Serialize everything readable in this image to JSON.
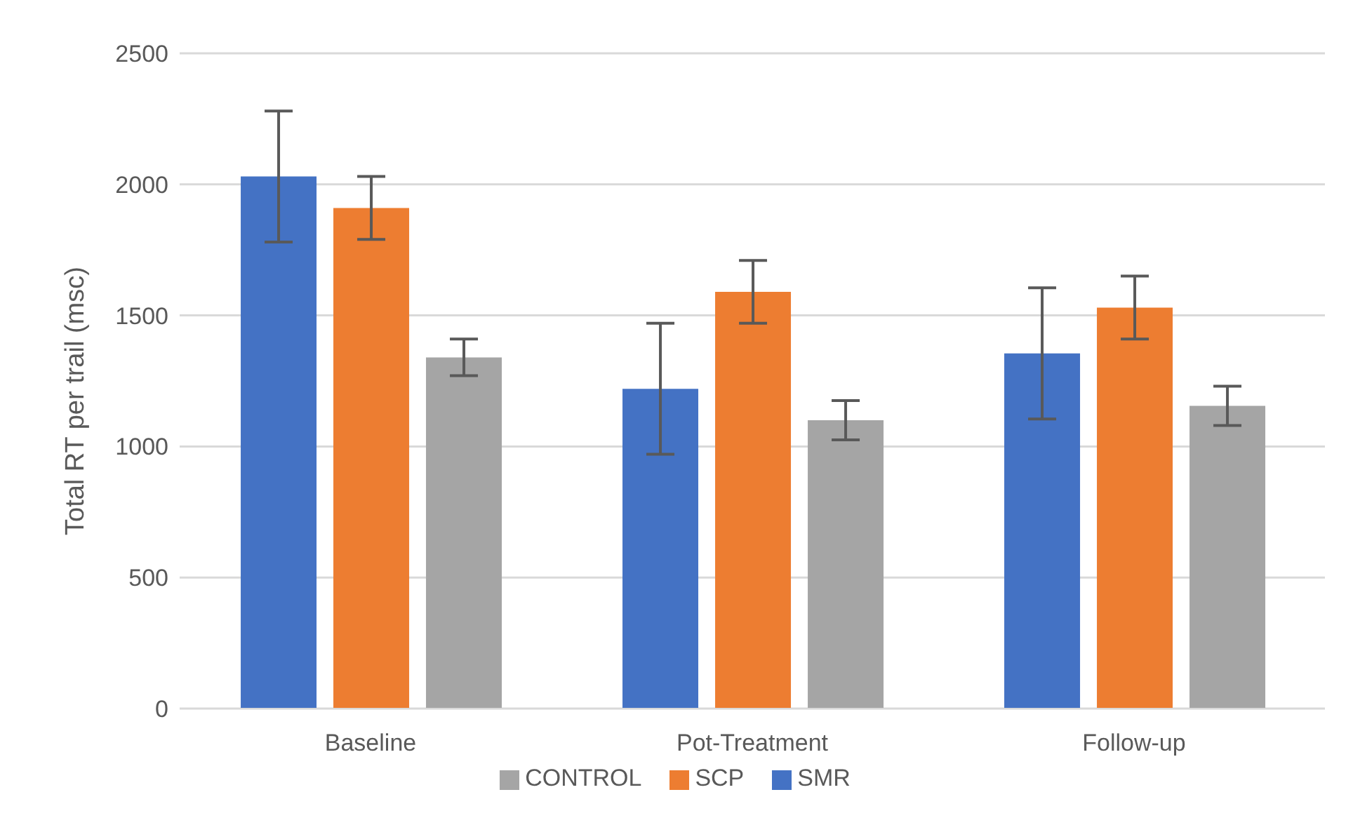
{
  "chart_data": {
    "type": "bar",
    "ylabel": "Total RT per trail (msc)",
    "categories": [
      "Baseline",
      "Pot-Treatment",
      "Follow-up"
    ],
    "series": [
      {
        "name": "SMR",
        "color": "#4472c4",
        "values": [
          2030,
          1220,
          1355
        ],
        "errors": [
          250,
          250,
          250
        ]
      },
      {
        "name": "SCP",
        "color": "#ed7d31",
        "values": [
          1910,
          1590,
          1530
        ],
        "errors": [
          120,
          120,
          120
        ]
      },
      {
        "name": "CONTROL",
        "color": "#a5a5a5",
        "values": [
          1340,
          1100,
          1155
        ],
        "errors": [
          70,
          75,
          75
        ]
      }
    ],
    "ylim": [
      0,
      2500
    ],
    "yticks": [
      0,
      500,
      1000,
      1500,
      2000,
      2500
    ],
    "grid": "y",
    "legend": "bottom"
  }
}
